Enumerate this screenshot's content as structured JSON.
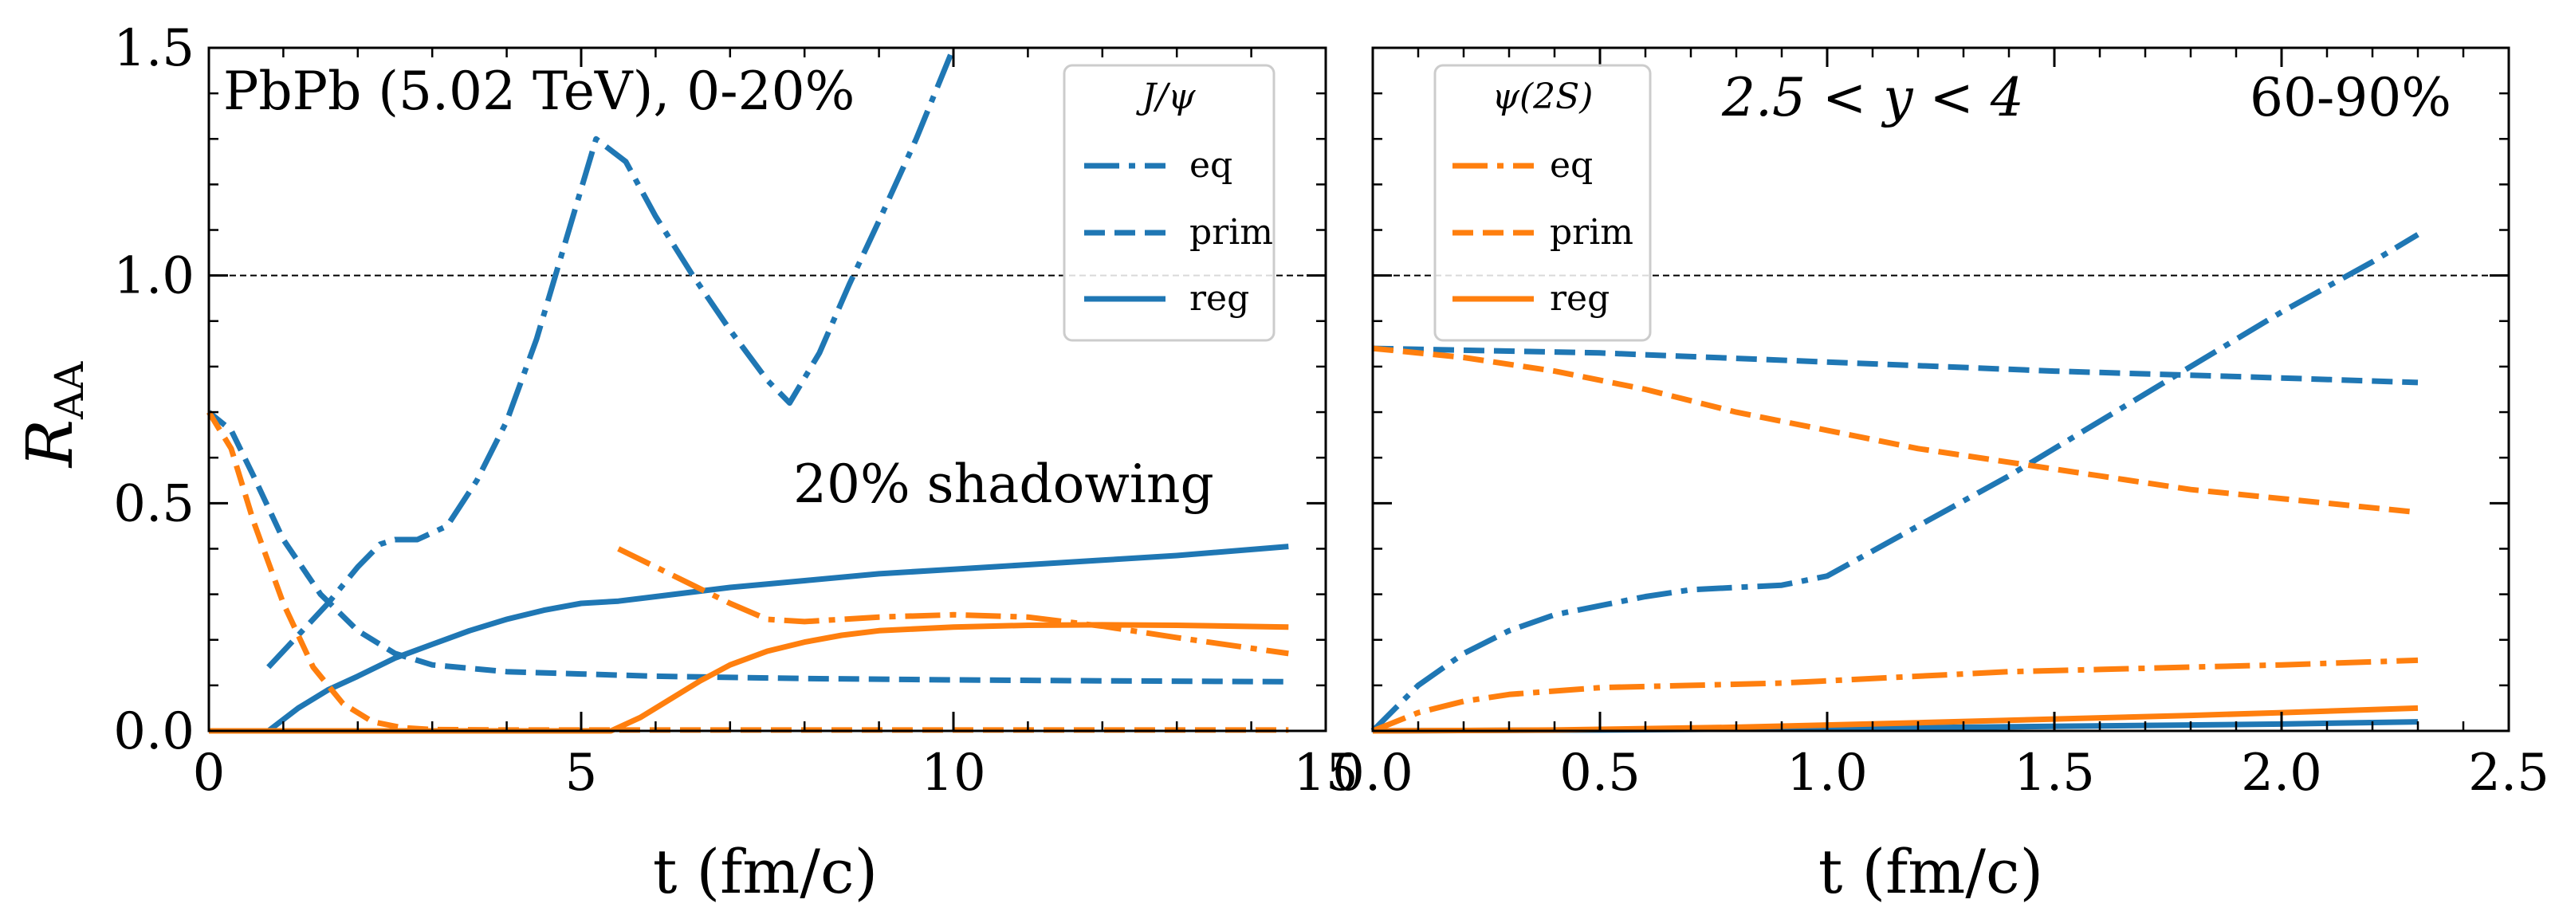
{
  "colors": {
    "jpsi": "#1f77b4",
    "psi2s": "#ff7f0e",
    "reference": "#000000"
  },
  "chart_data": [
    {
      "type": "line",
      "panel": "left",
      "xlabel": "t (fm/c)",
      "ylabel": "R_AA",
      "xlim": [
        0,
        15
      ],
      "ylim": [
        0,
        1.5
      ],
      "xticks": [
        0,
        5,
        10,
        15
      ],
      "yticks": [
        0.0,
        0.5,
        1.0,
        1.5
      ],
      "xtick_labels": [
        "0",
        "5",
        "10",
        "15"
      ],
      "ytick_labels": [
        "0.0",
        "0.5",
        "1.0",
        "1.5"
      ],
      "reference_line": 1.0,
      "annotations": [
        "PbPb (5.02 TeV), 0-20%",
        "20% shadowing"
      ],
      "legend": {
        "title": "J/ψ",
        "position": "top-right",
        "entries": [
          {
            "label": "eq",
            "style": "dashdot",
            "color": "#1f77b4"
          },
          {
            "label": "prim",
            "style": "dashed",
            "color": "#1f77b4"
          },
          {
            "label": "reg",
            "style": "solid",
            "color": "#1f77b4"
          }
        ]
      },
      "series": [
        {
          "name": "J/ψ eq",
          "color": "#1f77b4",
          "style": "dashdot",
          "x": [
            0.8,
            1.2,
            1.6,
            2.0,
            2.3,
            2.5,
            2.8,
            3.2,
            3.6,
            4.0,
            4.4,
            4.8,
            5.2,
            5.6,
            6.0,
            6.5,
            7.0,
            7.5,
            7.8,
            8.2,
            8.6,
            9.0,
            9.5,
            10.0
          ],
          "y": [
            0.14,
            0.21,
            0.28,
            0.36,
            0.41,
            0.42,
            0.42,
            0.45,
            0.55,
            0.68,
            0.86,
            1.08,
            1.3,
            1.25,
            1.13,
            1.0,
            0.88,
            0.77,
            0.72,
            0.83,
            0.98,
            1.12,
            1.3,
            1.5
          ]
        },
        {
          "name": "J/ψ prim",
          "color": "#1f77b4",
          "style": "dashed",
          "x": [
            0,
            0.3,
            0.6,
            1.0,
            1.5,
            2.0,
            2.5,
            3.0,
            4.0,
            5.0,
            6.0,
            8.0,
            10.0,
            12.0,
            14.5
          ],
          "y": [
            0.7,
            0.66,
            0.56,
            0.42,
            0.3,
            0.22,
            0.17,
            0.145,
            0.13,
            0.125,
            0.12,
            0.115,
            0.112,
            0.11,
            0.108
          ]
        },
        {
          "name": "J/ψ reg",
          "color": "#1f77b4",
          "style": "solid",
          "x": [
            0.8,
            1.2,
            1.6,
            2.0,
            2.5,
            3.0,
            3.5,
            4.0,
            4.5,
            5.0,
            5.5,
            6.0,
            7.0,
            8.0,
            9.0,
            10.0,
            11.0,
            12.0,
            13.0,
            14.5
          ],
          "y": [
            0.0,
            0.05,
            0.09,
            0.12,
            0.16,
            0.19,
            0.22,
            0.245,
            0.265,
            0.28,
            0.285,
            0.295,
            0.315,
            0.33,
            0.345,
            0.355,
            0.365,
            0.375,
            0.385,
            0.405
          ]
        },
        {
          "name": "ψ(2S) eq",
          "color": "#ff7f0e",
          "style": "dashdot",
          "x": [
            5.5,
            6.0,
            6.5,
            7.0,
            7.5,
            8.0,
            9.0,
            10.0,
            11.0,
            12.0,
            13.0,
            14.5
          ],
          "y": [
            0.4,
            0.36,
            0.32,
            0.28,
            0.245,
            0.24,
            0.25,
            0.255,
            0.25,
            0.23,
            0.205,
            0.17
          ]
        },
        {
          "name": "ψ(2S) prim",
          "color": "#ff7f0e",
          "style": "dashed",
          "x": [
            0,
            0.3,
            0.6,
            1.0,
            1.4,
            1.8,
            2.2,
            2.6,
            3.0,
            4.0,
            6.0,
            10.0,
            14.5
          ],
          "y": [
            0.7,
            0.62,
            0.46,
            0.28,
            0.14,
            0.06,
            0.02,
            0.007,
            0.003,
            0.002,
            0.002,
            0.002,
            0.002
          ]
        },
        {
          "name": "ψ(2S) reg",
          "color": "#ff7f0e",
          "style": "solid",
          "x": [
            0,
            5.4,
            5.8,
            6.2,
            6.6,
            7.0,
            7.5,
            8.0,
            8.5,
            9.0,
            10.0,
            11.0,
            12.0,
            13.0,
            14.5
          ],
          "y": [
            0.0,
            0.0,
            0.03,
            0.07,
            0.11,
            0.145,
            0.175,
            0.195,
            0.21,
            0.22,
            0.228,
            0.232,
            0.233,
            0.232,
            0.228
          ]
        }
      ]
    },
    {
      "type": "line",
      "panel": "right",
      "xlabel": "t (fm/c)",
      "ylabel": "",
      "xlim": [
        0,
        2.5
      ],
      "ylim": [
        0,
        1.5
      ],
      "xticks": [
        0.0,
        0.5,
        1.0,
        1.5,
        2.0,
        2.5
      ],
      "yticks": [
        0.0,
        0.5,
        1.0,
        1.5
      ],
      "xtick_labels": [
        "0.0",
        "0.5",
        "1.0",
        "1.5",
        "2.0",
        "2.5"
      ],
      "reference_line": 1.0,
      "annotations": [
        "2.5 < y < 4",
        "60-90%"
      ],
      "legend": {
        "title": "ψ(2S)",
        "position": "top-left",
        "entries": [
          {
            "label": "eq",
            "style": "dashdot",
            "color": "#ff7f0e"
          },
          {
            "label": "prim",
            "style": "dashed",
            "color": "#ff7f0e"
          },
          {
            "label": "reg",
            "style": "solid",
            "color": "#ff7f0e"
          }
        ]
      },
      "series": [
        {
          "name": "J/ψ eq",
          "color": "#1f77b4",
          "style": "dashdot",
          "x": [
            0.0,
            0.1,
            0.2,
            0.3,
            0.4,
            0.5,
            0.6,
            0.7,
            0.8,
            0.9,
            1.0,
            1.2,
            1.4,
            1.6,
            1.8,
            2.0,
            2.2,
            2.3
          ],
          "y": [
            0.0,
            0.1,
            0.17,
            0.22,
            0.255,
            0.275,
            0.295,
            0.31,
            0.315,
            0.32,
            0.34,
            0.45,
            0.56,
            0.68,
            0.8,
            0.92,
            1.03,
            1.09
          ]
        },
        {
          "name": "J/ψ prim",
          "color": "#1f77b4",
          "style": "dashed",
          "x": [
            0.0,
            0.5,
            1.0,
            1.5,
            2.0,
            2.3
          ],
          "y": [
            0.84,
            0.83,
            0.81,
            0.79,
            0.775,
            0.765
          ]
        },
        {
          "name": "J/ψ reg",
          "color": "#1f77b4",
          "style": "solid",
          "x": [
            0.0,
            0.5,
            1.0,
            1.5,
            2.0,
            2.3
          ],
          "y": [
            0.0,
            0.002,
            0.005,
            0.01,
            0.015,
            0.02
          ]
        },
        {
          "name": "ψ(2S) eq",
          "color": "#ff7f0e",
          "style": "dashdot",
          "x": [
            0.0,
            0.1,
            0.2,
            0.3,
            0.5,
            0.7,
            0.9,
            1.0,
            1.2,
            1.4,
            1.6,
            1.8,
            2.0,
            2.3
          ],
          "y": [
            0.0,
            0.04,
            0.065,
            0.08,
            0.095,
            0.1,
            0.105,
            0.11,
            0.12,
            0.13,
            0.135,
            0.14,
            0.145,
            0.155
          ]
        },
        {
          "name": "ψ(2S) prim",
          "color": "#ff7f0e",
          "style": "dashed",
          "x": [
            0.0,
            0.2,
            0.4,
            0.6,
            0.8,
            1.0,
            1.2,
            1.4,
            1.6,
            1.8,
            2.0,
            2.3
          ],
          "y": [
            0.84,
            0.82,
            0.79,
            0.75,
            0.7,
            0.66,
            0.62,
            0.59,
            0.56,
            0.53,
            0.51,
            0.48
          ]
        },
        {
          "name": "ψ(2S) reg",
          "color": "#ff7f0e",
          "style": "solid",
          "x": [
            0.0,
            0.4,
            0.8,
            1.0,
            1.2,
            1.5,
            1.8,
            2.0,
            2.3
          ],
          "y": [
            0.0,
            0.002,
            0.008,
            0.013,
            0.018,
            0.026,
            0.034,
            0.04,
            0.05
          ]
        }
      ]
    }
  ]
}
